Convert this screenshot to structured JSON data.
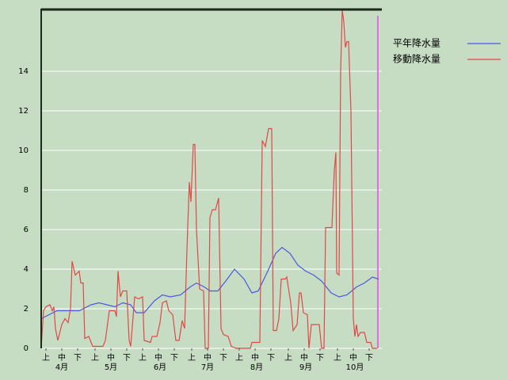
{
  "chart_data": {
    "type": "line",
    "xlim": [
      0,
      215
    ],
    "ylim": [
      0,
      17.12
    ],
    "yticks": [
      0,
      2,
      4,
      6,
      8,
      10,
      12,
      14
    ],
    "grid": true,
    "xticks": [
      {
        "value": 3,
        "label": "上"
      },
      {
        "value": 13,
        "label": "中"
      },
      {
        "value": 23,
        "label": "下"
      },
      {
        "value": 34,
        "label": "上"
      },
      {
        "value": 44,
        "label": "中"
      },
      {
        "value": 54,
        "label": "下"
      },
      {
        "value": 64,
        "label": "上"
      },
      {
        "value": 74,
        "label": "中"
      },
      {
        "value": 84,
        "label": "下"
      },
      {
        "value": 95,
        "label": "上"
      },
      {
        "value": 105,
        "label": "中"
      },
      {
        "value": 115,
        "label": "下"
      },
      {
        "value": 125,
        "label": "上"
      },
      {
        "value": 135,
        "label": "中"
      },
      {
        "value": 145,
        "label": "下"
      },
      {
        "value": 156,
        "label": "上"
      },
      {
        "value": 166,
        "label": "中"
      },
      {
        "value": 176,
        "label": "下"
      },
      {
        "value": 187,
        "label": "上"
      },
      {
        "value": 197,
        "label": "中"
      },
      {
        "value": 207,
        "label": "下"
      }
    ],
    "month_ticks": [
      {
        "value": 13,
        "label": "4月"
      },
      {
        "value": 44,
        "label": "5月"
      },
      {
        "value": 75,
        "label": "6月"
      },
      {
        "value": 105,
        "label": "7月"
      },
      {
        "value": 136,
        "label": "8月"
      },
      {
        "value": 167,
        "label": "9月"
      },
      {
        "value": 198,
        "label": "10月"
      }
    ],
    "legend": "top-right",
    "series": [
      {
        "name": "平年降水量",
        "color": "#4a58e0",
        "x": [
          0,
          5,
          10,
          24,
          31.5,
          36.5,
          41.5,
          46.5,
          51.5,
          56.5,
          60,
          65,
          71.5,
          76.5,
          81.5,
          88,
          94,
          98,
          103,
          106.5,
          111.5,
          116.5,
          122,
          128,
          133,
          137,
          143,
          148,
          152,
          157,
          162,
          167,
          172,
          177,
          183,
          188,
          193,
          199,
          204,
          209,
          213
        ],
        "values": [
          1.5,
          1.7,
          1.9,
          1.9,
          2.2,
          2.3,
          2.2,
          2.1,
          2.3,
          2.2,
          1.8,
          1.8,
          2.4,
          2.7,
          2.6,
          2.7,
          3.1,
          3.3,
          3.1,
          2.9,
          2.9,
          3.4,
          4.0,
          3.5,
          2.8,
          2.9,
          3.9,
          4.8,
          5.1,
          4.8,
          4.2,
          3.9,
          3.7,
          3.4,
          2.8,
          2.6,
          2.7,
          3.1,
          3.3,
          3.6,
          3.5
        ]
      },
      {
        "name": "移動降水量",
        "color": "#e04848",
        "x": [
          0,
          1.5,
          3,
          5.5,
          7,
          8,
          9,
          10.5,
          13,
          15,
          17,
          18.5,
          19.5,
          21.5,
          24,
          25,
          26.5,
          27.5,
          30,
          32.5,
          39,
          40.5,
          43,
          46.5,
          47.5,
          48.5,
          50,
          51.5,
          54,
          55.5,
          56.5,
          59,
          61.5,
          64,
          65,
          69,
          70,
          73,
          75,
          76.5,
          79,
          80.5,
          83,
          85,
          87,
          89,
          90.5,
          92,
          93.5,
          94.5,
          96,
          97,
          98,
          100,
          102.5,
          103.5,
          105.5,
          106.5,
          108,
          110,
          112,
          113.5,
          115,
          118,
          120,
          123,
          132,
          133,
          138,
          139.5,
          141.5,
          143.5,
          145.5,
          146.5,
          148.5,
          150,
          151.5,
          154,
          155,
          157.5,
          159,
          161.5,
          163,
          164,
          165.5,
          168,
          169,
          170.5,
          175.5,
          177,
          178.5,
          179.5,
          183.5,
          185,
          186,
          186.5,
          188,
          189,
          190,
          191,
          192,
          193,
          194,
          195.5,
          197,
          198,
          199,
          200,
          201.5,
          204,
          205.5,
          208,
          209,
          212
        ],
        "values": [
          0,
          1.9,
          2.1,
          2.2,
          1.9,
          2.1,
          1.0,
          0.4,
          1.2,
          1.5,
          1.3,
          2.0,
          4.4,
          3.7,
          3.9,
          3.3,
          3.3,
          0.5,
          0.6,
          0.1,
          0.1,
          0.4,
          1.9,
          1.9,
          1.6,
          3.9,
          2.6,
          2.9,
          2.9,
          0.4,
          0.1,
          2.6,
          2.5,
          2.6,
          0.4,
          0.3,
          0.6,
          0.6,
          1.3,
          2.3,
          2.4,
          1.9,
          1.7,
          0.4,
          0.4,
          1.4,
          1.0,
          5.0,
          8.4,
          7.4,
          10.3,
          10.3,
          6.0,
          3.0,
          2.9,
          0.0,
          0.0,
          6.6,
          7.0,
          7.0,
          7.6,
          1.0,
          0.7,
          0.6,
          0.1,
          0.0,
          0.0,
          0.3,
          0.3,
          10.5,
          10.2,
          11.1,
          11.1,
          0.9,
          0.9,
          1.5,
          3.5,
          3.5,
          3.6,
          2.3,
          0.9,
          1.2,
          2.8,
          2.8,
          1.8,
          1.7,
          0.0,
          1.2,
          1.2,
          0.0,
          0.0,
          6.1,
          6.1,
          9.0,
          9.9,
          3.8,
          3.7,
          14.0,
          17.1,
          16.5,
          15.2,
          15.5,
          15.5,
          12.0,
          1.5,
          0.6,
          1.2,
          0.6,
          0.8,
          0.8,
          0.3,
          0.3,
          0.0,
          0.0
        ]
      }
    ]
  }
}
